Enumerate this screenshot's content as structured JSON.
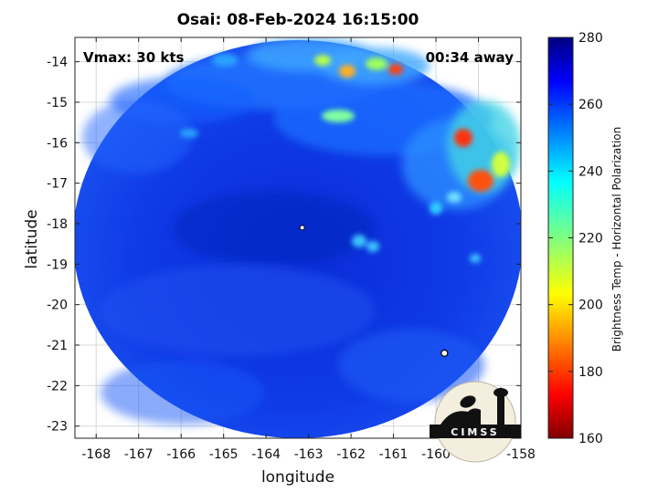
{
  "title": "Osai: 08-Feb-2024 16:15:00",
  "annotations": {
    "vmax": "Vmax: 30 kts",
    "time_away": "00:34 away"
  },
  "map": {
    "xlabel": "longitude",
    "ylabel": "latitude",
    "xlim": [
      -168.5,
      -158
    ],
    "ylim": [
      -23.3,
      -13.4
    ],
    "x_ticks": [
      -168,
      -167,
      -166,
      -165,
      -164,
      -163,
      -162,
      -161,
      -160,
      -159,
      -158
    ],
    "y_ticks": [
      -14,
      -15,
      -16,
      -17,
      -18,
      -19,
      -20,
      -21,
      -22,
      -23
    ],
    "x_tick_labels": [
      "-168",
      "-167",
      "-166",
      "-165",
      "-164",
      "-163",
      "-162",
      "-161",
      "-160",
      "-159",
      "-158"
    ],
    "y_tick_labels": [
      "-14",
      "-15",
      "-16",
      "-17",
      "-18",
      "-19",
      "-20",
      "-21",
      "-22",
      "-23"
    ],
    "grid": true,
    "storm_center": {
      "lon": -163.15,
      "lat": -18.1
    },
    "second_marker": {
      "lon": -159.8,
      "lat": -21.2
    }
  },
  "colorbar": {
    "label": "Brightness Temp - Horizontal Polarization",
    "min": 160,
    "max": 280,
    "ticks": [
      160,
      180,
      200,
      220,
      240,
      260,
      280
    ],
    "tick_labels": [
      "160",
      "180",
      "200",
      "220",
      "240",
      "260",
      "280"
    ],
    "colormap": "jet"
  },
  "logo": {
    "text": "CIMSS"
  }
}
